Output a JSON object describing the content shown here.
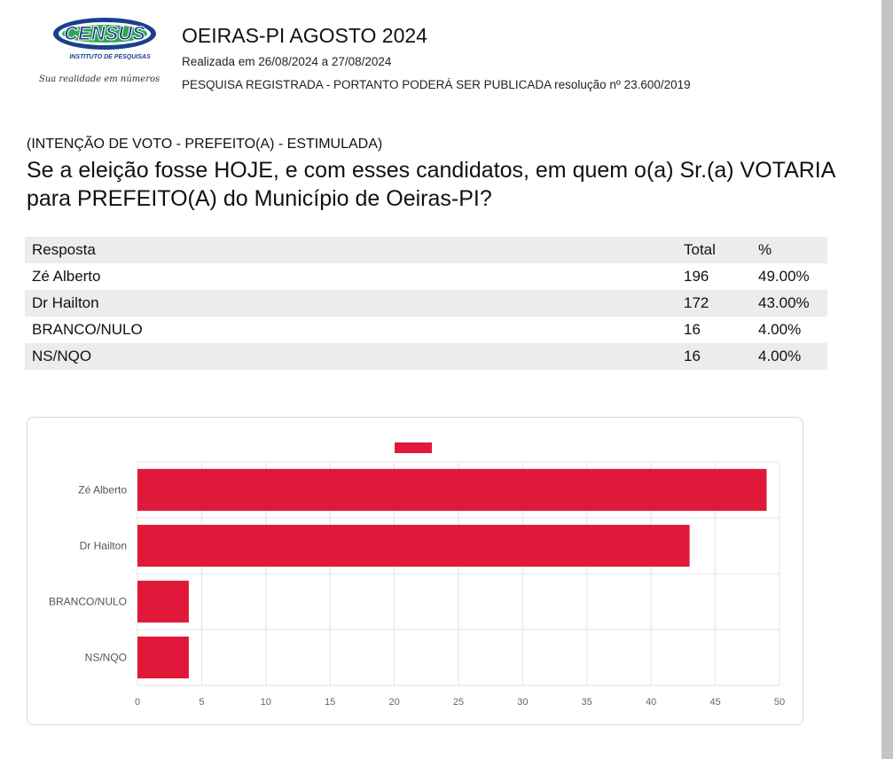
{
  "header": {
    "logo_text": "CENSUS",
    "logo_subtitle": "INSTITUTO DE PESQUISAS",
    "logo_tagline": "Sua realidade em números",
    "title": "OEIRAS-PI AGOSTO 2024",
    "dates": "Realizada em 26/08/2024 a 27/08/2024",
    "registration": "PESQUISA REGISTRADA - PORTANTO PODERÁ SER PUBLICADA resolução nº 23.600/2019"
  },
  "question": {
    "subtitle": "(INTENÇÃO DE VOTO - PREFEITO(A) - ESTIMULADA)",
    "text": "Se a eleição fosse HOJE, e com esses candidatos, em quem o(a) Sr.(a) VOTARIA para PREFEITO(A) do Município de Oeiras-PI?"
  },
  "table": {
    "headers": [
      "Resposta",
      "Total",
      "%"
    ],
    "rows": [
      [
        "Zé Alberto",
        "196",
        "49.00%"
      ],
      [
        "Dr Hailton",
        "172",
        "43.00%"
      ],
      [
        "BRANCO/NULO",
        "16",
        "4.00%"
      ],
      [
        "NS/NQO",
        "16",
        "4.00%"
      ]
    ]
  },
  "colors": {
    "bar": "#e0193a",
    "logo_blue": "#1a3f8c",
    "logo_green": "#2fa84f"
  },
  "chart_data": {
    "type": "bar",
    "orientation": "horizontal",
    "categories": [
      "Zé Alberto",
      "Dr Hailton",
      "BRANCO/NULO",
      "NS/NQO"
    ],
    "values": [
      49,
      43,
      4,
      4
    ],
    "xlim": [
      0,
      50
    ],
    "xticks": [
      0,
      5,
      10,
      15,
      20,
      25,
      30,
      35,
      40,
      45,
      50
    ],
    "grid": true,
    "legend": "top-center",
    "legend_label": ""
  }
}
